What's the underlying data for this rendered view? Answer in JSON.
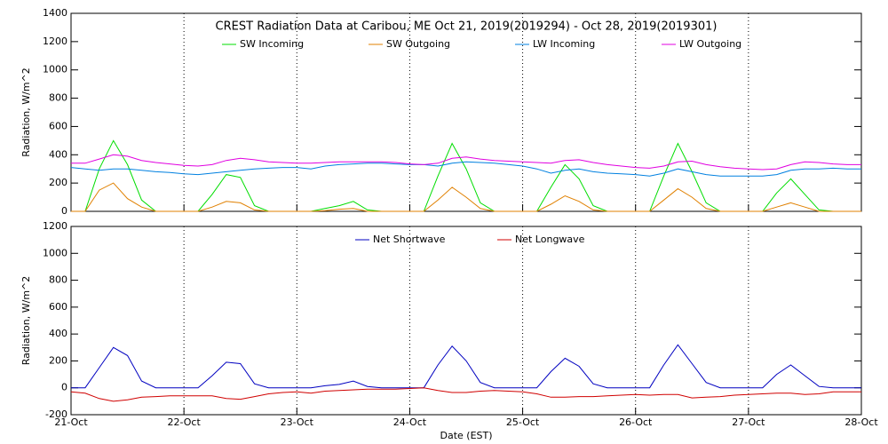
{
  "chart_data": [
    {
      "type": "line",
      "title": "CREST Radiation Data at Caribou, ME   Oct 21, 2019(2019294) - Oct 28, 2019(2019301)",
      "ylabel": "Radiation, W/m^2",
      "x": [
        0,
        0.125,
        0.25,
        0.375,
        0.5,
        0.625,
        0.75,
        0.875,
        1,
        1.125,
        1.25,
        1.375,
        1.5,
        1.625,
        1.75,
        1.875,
        2,
        2.125,
        2.25,
        2.375,
        2.5,
        2.625,
        2.75,
        2.875,
        3,
        3.125,
        3.25,
        3.375,
        3.5,
        3.625,
        3.75,
        3.875,
        4,
        4.125,
        4.25,
        4.375,
        4.5,
        4.625,
        4.75,
        4.875,
        5,
        5.125,
        5.25,
        5.375,
        5.5,
        5.625,
        5.75,
        5.875,
        6,
        6.125,
        6.25,
        6.375,
        6.5,
        6.625,
        6.75,
        6.875,
        7
      ],
      "series": [
        {
          "name": "SW Incoming",
          "color": "#00dd00",
          "values": [
            0,
            0,
            300,
            500,
            330,
            80,
            0,
            0,
            0,
            0,
            120,
            260,
            240,
            40,
            0,
            0,
            0,
            0,
            20,
            40,
            70,
            10,
            0,
            0,
            0,
            0,
            250,
            480,
            300,
            60,
            0,
            0,
            0,
            0,
            170,
            330,
            230,
            40,
            0,
            0,
            0,
            0,
            250,
            480,
            280,
            60,
            0,
            0,
            0,
            0,
            130,
            230,
            120,
            10,
            0,
            0,
            0
          ]
        },
        {
          "name": "SW Outgoing",
          "color": "#e08000",
          "values": [
            0,
            0,
            150,
            200,
            90,
            30,
            0,
            0,
            0,
            0,
            30,
            70,
            60,
            10,
            0,
            0,
            0,
            0,
            5,
            15,
            20,
            0,
            0,
            0,
            0,
            0,
            80,
            170,
            100,
            20,
            0,
            0,
            0,
            0,
            50,
            110,
            70,
            10,
            0,
            0,
            0,
            0,
            80,
            160,
            100,
            20,
            0,
            0,
            0,
            0,
            30,
            60,
            30,
            0,
            0,
            0,
            0
          ]
        },
        {
          "name": "LW Incoming",
          "color": "#0080e0",
          "values": [
            310,
            300,
            290,
            300,
            300,
            290,
            280,
            275,
            265,
            260,
            270,
            280,
            290,
            300,
            305,
            310,
            310,
            300,
            320,
            330,
            335,
            340,
            340,
            335,
            330,
            330,
            320,
            340,
            350,
            345,
            340,
            330,
            320,
            300,
            270,
            290,
            300,
            280,
            270,
            265,
            260,
            250,
            270,
            300,
            280,
            260,
            250,
            250,
            250,
            250,
            260,
            290,
            300,
            300,
            305,
            300,
            300
          ]
        },
        {
          "name": "LW Outgoing",
          "color": "#e000e0",
          "values": [
            340,
            340,
            370,
            400,
            390,
            360,
            345,
            335,
            325,
            320,
            330,
            360,
            375,
            365,
            350,
            345,
            340,
            340,
            345,
            350,
            350,
            350,
            350,
            345,
            335,
            330,
            340,
            375,
            385,
            370,
            360,
            355,
            350,
            345,
            340,
            360,
            365,
            345,
            330,
            320,
            310,
            305,
            320,
            350,
            355,
            330,
            315,
            305,
            300,
            295,
            300,
            330,
            350,
            345,
            335,
            330,
            330
          ]
        }
      ],
      "xlim": [
        0,
        7
      ],
      "xticks": [
        0,
        1,
        2,
        3,
        4,
        5,
        6,
        7
      ],
      "ylim": [
        0,
        1400
      ],
      "yticks": [
        0,
        200,
        400,
        600,
        800,
        1000,
        1200,
        1400
      ],
      "grid": "x"
    },
    {
      "type": "line",
      "ylabel": "Radiation, W/m^2",
      "xlabel": "Date (EST)",
      "x": [
        0,
        0.125,
        0.25,
        0.375,
        0.5,
        0.625,
        0.75,
        0.875,
        1,
        1.125,
        1.25,
        1.375,
        1.5,
        1.625,
        1.75,
        1.875,
        2,
        2.125,
        2.25,
        2.375,
        2.5,
        2.625,
        2.75,
        2.875,
        3,
        3.125,
        3.25,
        3.375,
        3.5,
        3.625,
        3.75,
        3.875,
        4,
        4.125,
        4.25,
        4.375,
        4.5,
        4.625,
        4.75,
        4.875,
        5,
        5.125,
        5.25,
        5.375,
        5.5,
        5.625,
        5.75,
        5.875,
        6,
        6.125,
        6.25,
        6.375,
        6.5,
        6.625,
        6.75,
        6.875,
        7
      ],
      "series": [
        {
          "name": "Net Shortwave",
          "color": "#0000c0",
          "values": [
            0,
            0,
            150,
            300,
            240,
            50,
            0,
            0,
            0,
            0,
            90,
            190,
            180,
            30,
            0,
            0,
            0,
            0,
            15,
            25,
            50,
            10,
            0,
            0,
            0,
            0,
            170,
            310,
            200,
            40,
            0,
            0,
            0,
            0,
            120,
            220,
            160,
            30,
            0,
            0,
            0,
            0,
            170,
            320,
            180,
            40,
            0,
            0,
            0,
            0,
            100,
            170,
            90,
            10,
            0,
            0,
            0
          ]
        },
        {
          "name": "Net Longwave",
          "color": "#d00000",
          "values": [
            -30,
            -40,
            -80,
            -100,
            -90,
            -70,
            -65,
            -60,
            -60,
            -60,
            -60,
            -80,
            -85,
            -65,
            -45,
            -35,
            -30,
            -40,
            -25,
            -20,
            -15,
            -10,
            -10,
            -10,
            -5,
            0,
            -20,
            -35,
            -35,
            -25,
            -20,
            -25,
            -30,
            -45,
            -70,
            -70,
            -65,
            -65,
            -60,
            -55,
            -50,
            -55,
            -50,
            -50,
            -75,
            -70,
            -65,
            -55,
            -50,
            -45,
            -40,
            -40,
            -50,
            -45,
            -30,
            -30,
            -30
          ]
        }
      ],
      "xlim": [
        0,
        7
      ],
      "xticks": [
        {
          "value": 0,
          "label": "21-Oct"
        },
        {
          "value": 1,
          "label": "22-Oct"
        },
        {
          "value": 2,
          "label": "23-Oct"
        },
        {
          "value": 3,
          "label": "24-Oct"
        },
        {
          "value": 4,
          "label": "25-Oct"
        },
        {
          "value": 5,
          "label": "26-Oct"
        },
        {
          "value": 6,
          "label": "27-Oct"
        },
        {
          "value": 7,
          "label": "28-Oct"
        }
      ],
      "ylim": [
        -200,
        1200
      ],
      "yticks": [
        -200,
        0,
        200,
        400,
        600,
        800,
        1000,
        1200
      ],
      "grid": "x"
    }
  ]
}
